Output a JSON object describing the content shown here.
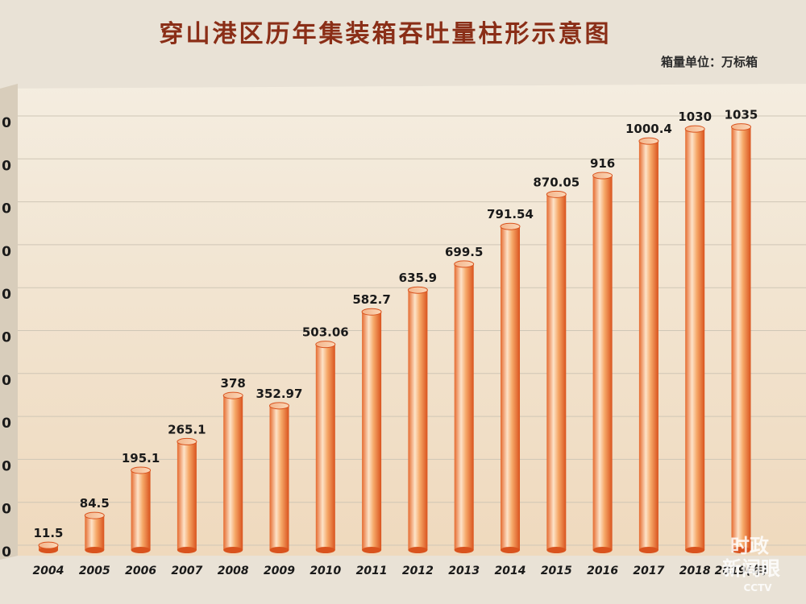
{
  "chart_data": {
    "type": "bar",
    "title": "穿山港区历年集装箱吞吐量柱形示意图",
    "unit_label": "箱量单位：万标箱",
    "x_suffix": "(年)",
    "categories": [
      "2004",
      "2005",
      "2006",
      "2007",
      "2008",
      "2009",
      "2010",
      "2011",
      "2012",
      "2013",
      "2014",
      "2015",
      "2016",
      "2017",
      "2018",
      "2019"
    ],
    "values": [
      11.5,
      84.5,
      195.1,
      265.1,
      378,
      352.97,
      503.06,
      582.7,
      635.9,
      699.5,
      791.54,
      870.05,
      916,
      1000.4,
      1030,
      1035
    ],
    "value_labels": [
      "11.5",
      "84.5",
      "195.1",
      "265.1",
      "378",
      "352.97",
      "503.06",
      "582.7",
      "635.9",
      "699.5",
      "791.54",
      "870.05",
      "916",
      "1000.4",
      "1030",
      "1035"
    ],
    "y_tick_labels": [
      "0",
      "0",
      "0",
      "0",
      "0",
      "0",
      "0",
      "0",
      "0",
      "0",
      "0"
    ],
    "ylim": [
      0,
      1050
    ],
    "grid": true,
    "colors": {
      "bar_light": "#fde0c4",
      "bar_mid": "#f39a58",
      "bar_dark": "#d9531e",
      "grid": "#cfc6b6",
      "title": "#8a2e17"
    }
  },
  "watermark": {
    "line1": "时政",
    "line2": "新闻眼",
    "brand": "CCTV"
  }
}
